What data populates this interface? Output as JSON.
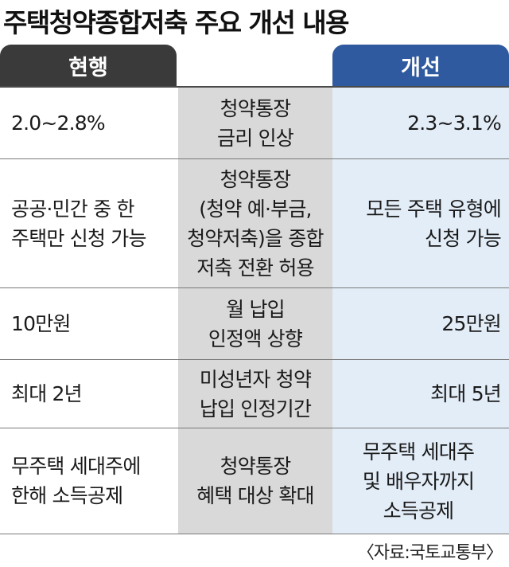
{
  "title": "주택청약종합저축 주요 개선 내용",
  "headers": {
    "current": "현행",
    "improved": "개선"
  },
  "rows": [
    {
      "current": "2.0~2.8%",
      "item": "청약통장\n금리 인상",
      "improved": "2.3~3.1%"
    },
    {
      "current": "공공·민간 중 한\n주택만 신청 가능",
      "item": "청약통장\n(청약 예·부금,\n청약저축)을 종합\n저축 전환 허용",
      "improved": "모든 주택 유형에\n신청 가능"
    },
    {
      "current": "10만원",
      "item": "월 납입\n인정액 상향",
      "improved": "25만원"
    },
    {
      "current": "최대 2년",
      "item": "미성년자 청약\n납입 인정기간",
      "improved": "최대 5년"
    },
    {
      "current": "무주택 세대주에\n한해 소득공제",
      "item": "청약통장\n혜택 대상 확대",
      "improved": "무주택 세대주\n및 배우자까지\n소득공제"
    }
  ],
  "source": "〈자료:국토교통부〉",
  "colors": {
    "current_header": "#3a3a3a",
    "improved_header": "#2f5a9f",
    "item_column": "#d9d9d9",
    "improved_column": "#e3edf8"
  }
}
